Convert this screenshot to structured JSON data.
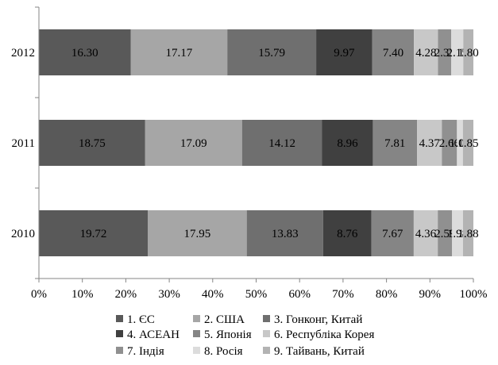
{
  "chart_data": {
    "type": "bar",
    "orientation": "horizontal",
    "stacked": "percent",
    "categories": [
      "2012",
      "2011",
      "2010"
    ],
    "series": [
      {
        "name": "1. ЄС",
        "color": "#595959",
        "values": [
          16.3,
          18.75,
          19.72
        ],
        "labels": [
          "16.30",
          "18.75",
          "19.72"
        ]
      },
      {
        "name": "2. США",
        "color": "#a6a6a6",
        "values": [
          17.17,
          17.09,
          17.95
        ],
        "labels": [
          "17.17",
          "17.09",
          "17.95"
        ]
      },
      {
        "name": "3. Гонконг, Китай",
        "color": "#6f6f6f",
        "values": [
          15.79,
          14.12,
          13.83
        ],
        "labels": [
          "15.79",
          "14.12",
          "13.83"
        ]
      },
      {
        "name": "4. АСЕАН",
        "color": "#404040",
        "values": [
          9.97,
          8.96,
          8.76
        ],
        "labels": [
          "9.97",
          "8.96",
          "8.76"
        ]
      },
      {
        "name": "5. Японія",
        "color": "#858585",
        "values": [
          7.4,
          7.81,
          7.67
        ],
        "labels": [
          "7.40",
          "7.81",
          "7.67"
        ]
      },
      {
        "name": "6. Республіка Корея",
        "color": "#c8c8c8",
        "values": [
          4.28,
          4.37,
          4.36
        ],
        "labels": [
          "4.28",
          "4.37",
          "4.36"
        ]
      },
      {
        "name": "7. Індія",
        "color": "#909090",
        "values": [
          2.33,
          2.66,
          2.59
        ],
        "labels": [
          "2.33",
          "2.66",
          "2.59"
        ]
      },
      {
        "name": "8. Росія",
        "color": "#dcdcdc",
        "values": [
          2.15,
          1.05,
          1.98
        ],
        "labels": [
          "2.15",
          "1.05",
          "1.98"
        ]
      },
      {
        "name": "9. Тайвань, Китай",
        "color": "#b3b3b3",
        "values": [
          1.8,
          1.85,
          1.88
        ],
        "labels": [
          "1.80",
          "1.85",
          "1.88"
        ]
      }
    ],
    "xlim": [
      0,
      100
    ],
    "x_ticks": [
      "0%",
      "10%",
      "20%",
      "30%",
      "40%",
      "50%",
      "60%",
      "70%",
      "80%",
      "90%",
      "100%"
    ],
    "grid": false,
    "legend_position": "bottom"
  }
}
